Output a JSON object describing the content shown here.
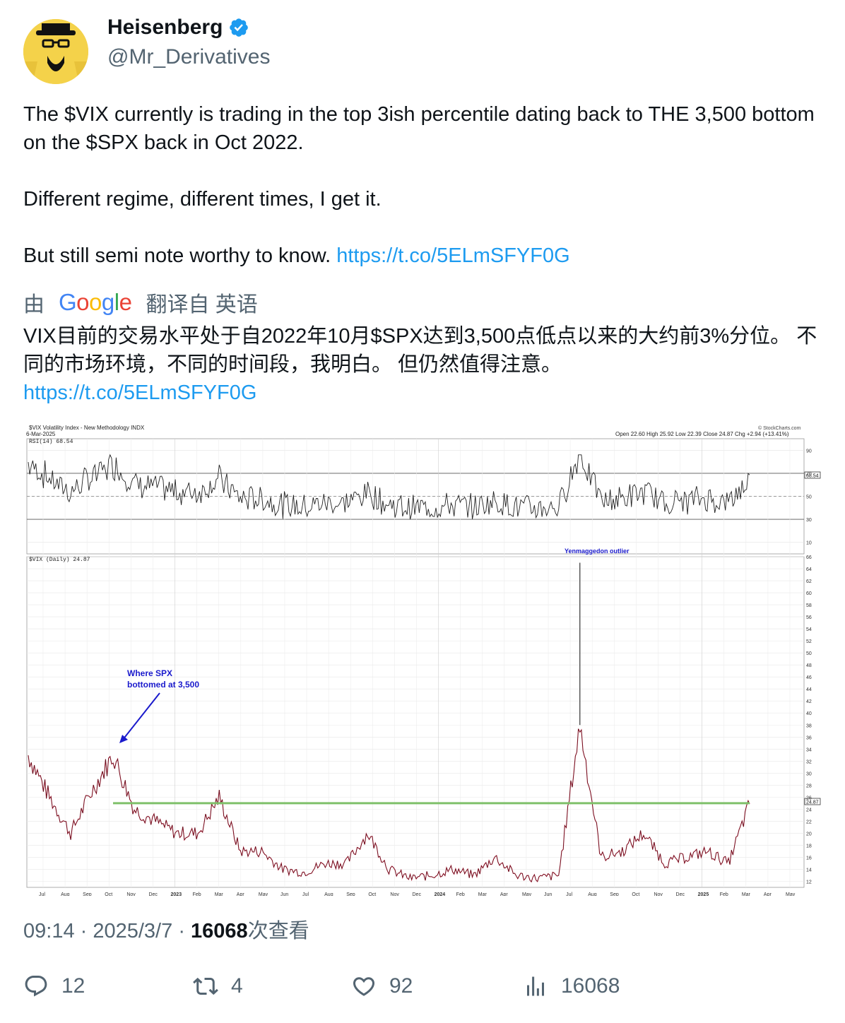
{
  "author": {
    "display_name": "Heisenberg",
    "handle": "@Mr_Derivatives",
    "verified": true
  },
  "tweet": {
    "line1": "The $VIX currently is trading in the top 3ish percentile dating back to THE 3,500 bottom on the $SPX back in Oct 2022.",
    "line2": "Different regime, different times, I get it.",
    "line3_text": "But still semi note worthy to know. ",
    "line3_link": "https://t.co/5ELmSFYF0G"
  },
  "translation": {
    "by_label": "由",
    "provider": "Google",
    "from_label": "翻译自 英语",
    "text": "VIX目前的交易水平处于自2022年10月$SPX达到3,500点低点以来的大约前3%分位。 不同的市场环境，不同的时间段，我明白。 但仍然值得注意。",
    "link": "https://t.co/5ELmSFYF0G"
  },
  "chart": {
    "header_title": "$VIX Volatility Index - New Methodology INDX",
    "header_date": "6-Mar-2025",
    "header_ohlc": "Open 22.60  High 25.92  Low 22.39  Close 24.87  Chg +2.94 (+13.41%)",
    "watermark": "© StockCharts.com",
    "rsi_label": "RSI(14) 68.54",
    "rsi_value_tag": "68.54",
    "price_label": "$VIX (Daily) 24.87",
    "price_value_tag": "24.87",
    "annotation_spx": [
      "Where SPX",
      "bottomed at 3,500"
    ],
    "annotation_yen": "Yenmaggedon outlier"
  },
  "chart_data": {
    "type": "line",
    "title": "$VIX Volatility Index - New Methodology INDX",
    "panels": [
      {
        "name": "RSI(14)",
        "ylim": [
          0,
          100
        ],
        "y_ticks": [
          10,
          30,
          50,
          70,
          90
        ],
        "reference_lines": [
          30,
          50,
          70
        ],
        "last_value": 68.54
      },
      {
        "name": "$VIX (Daily)",
        "ylim": [
          11,
          66
        ],
        "y_ticks": [
          12,
          14,
          16,
          18,
          20,
          22,
          24,
          26,
          28,
          30,
          32,
          34,
          36,
          38,
          40,
          42,
          44,
          46,
          48,
          50,
          52,
          54,
          56,
          58,
          60,
          62,
          64,
          66
        ],
        "horizontal_line": 25,
        "last_value": 24.87,
        "series": [
          {
            "x": "2022-06",
            "y": 33
          },
          {
            "x": "2022-07",
            "y": 26
          },
          {
            "x": "2022-08",
            "y": 20
          },
          {
            "x": "2022-09",
            "y": 27
          },
          {
            "x": "2022-10",
            "y": 33
          },
          {
            "x": "2022-11",
            "y": 24
          },
          {
            "x": "2022-12",
            "y": 22
          },
          {
            "x": "2023-01",
            "y": 20
          },
          {
            "x": "2023-02",
            "y": 20
          },
          {
            "x": "2023-03",
            "y": 26
          },
          {
            "x": "2023-04",
            "y": 17
          },
          {
            "x": "2023-05",
            "y": 17
          },
          {
            "x": "2023-06",
            "y": 14
          },
          {
            "x": "2023-07",
            "y": 13.5
          },
          {
            "x": "2023-08",
            "y": 15
          },
          {
            "x": "2023-09",
            "y": 15
          },
          {
            "x": "2023-10",
            "y": 20
          },
          {
            "x": "2023-11",
            "y": 14
          },
          {
            "x": "2023-12",
            "y": 12.5
          },
          {
            "x": "2024-01",
            "y": 13
          },
          {
            "x": "2024-02",
            "y": 14
          },
          {
            "x": "2024-03",
            "y": 13
          },
          {
            "x": "2024-04",
            "y": 16
          },
          {
            "x": "2024-05",
            "y": 13
          },
          {
            "x": "2024-06",
            "y": 12.5
          },
          {
            "x": "2024-07",
            "y": 13
          },
          {
            "x": "2024-08",
            "y": 38
          },
          {
            "x": "2024-08b",
            "y": 16
          },
          {
            "x": "2024-09",
            "y": 17
          },
          {
            "x": "2024-10",
            "y": 20
          },
          {
            "x": "2024-11",
            "y": 15
          },
          {
            "x": "2024-12",
            "y": 16
          },
          {
            "x": "2025-01",
            "y": 17
          },
          {
            "x": "2025-02",
            "y": 15
          },
          {
            "x": "2025-03",
            "y": 24.87
          }
        ]
      }
    ],
    "x_tick_labels": [
      "Jul",
      "Aug",
      "Sep",
      "Oct",
      "Nov",
      "Dec",
      "2023",
      "Feb",
      "Mar",
      "Apr",
      "May",
      "Jun",
      "Jul",
      "Aug",
      "Sep",
      "Oct",
      "Nov",
      "Dec",
      "2024",
      "Feb",
      "Mar",
      "Apr",
      "May",
      "Jun",
      "Jul",
      "Aug",
      "Sep",
      "Oct",
      "Nov",
      "Dec",
      "2025",
      "Feb",
      "Mar",
      "Apr",
      "May"
    ],
    "outlier": {
      "x": "2024-08",
      "y": 65,
      "label": "Yenmaggedon outlier"
    }
  },
  "footer": {
    "time": "09:14",
    "date": "2025/3/7",
    "views_count": "16068",
    "views_label": "次查看"
  },
  "actions": {
    "replies": "12",
    "reposts": "4",
    "likes": "92",
    "views": "16068"
  }
}
